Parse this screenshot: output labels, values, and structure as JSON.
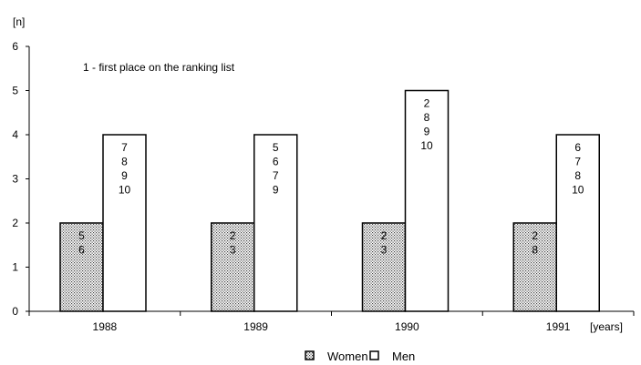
{
  "chart_data": {
    "type": "bar",
    "title": "",
    "ylabel": "[n]",
    "xlabel": "[years]",
    "ylim": [
      0,
      6
    ],
    "yticks": [
      "0",
      "1",
      "2",
      "3",
      "4",
      "5",
      "6"
    ],
    "categories": [
      "1988",
      "1989",
      "1990",
      "1991"
    ],
    "series": [
      {
        "name": "Women",
        "values": [
          2,
          2,
          2,
          2
        ],
        "bar_labels": [
          [
            "5",
            "6"
          ],
          [
            "2",
            "3"
          ],
          [
            "2",
            "3"
          ],
          [
            "2",
            "8"
          ]
        ],
        "fill": "dotted"
      },
      {
        "name": "Men",
        "values": [
          4,
          4,
          5,
          4
        ],
        "bar_labels": [
          [
            "7",
            "8",
            "9",
            "10"
          ],
          [
            "5",
            "6",
            "7",
            "9"
          ],
          [
            "2",
            "8",
            "9",
            "10"
          ],
          [
            "6",
            "7",
            "8",
            "10"
          ]
        ],
        "fill": "white"
      }
    ],
    "annotation": "1 - first place on the ranking list",
    "grid": false,
    "legend_position": "bottom-center"
  }
}
